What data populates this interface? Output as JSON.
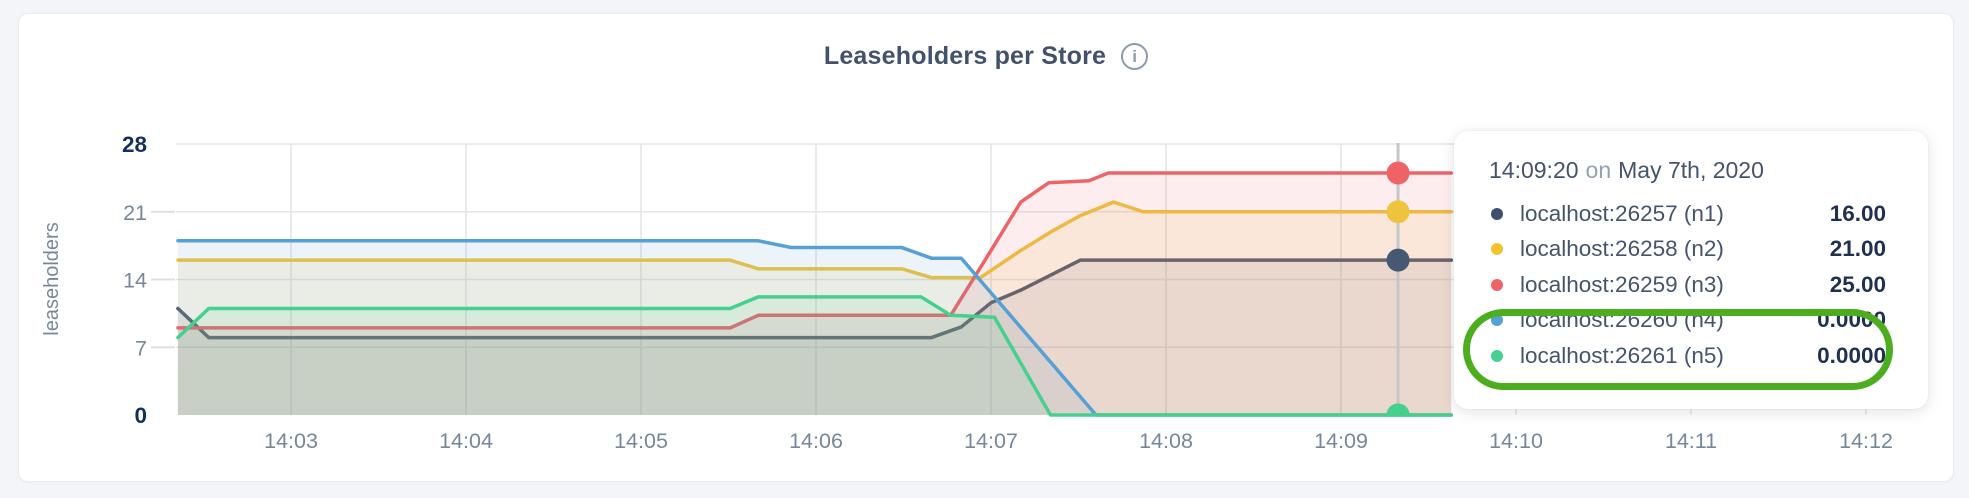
{
  "header": {
    "title": "Leaseholders per Store",
    "info_icon": "i"
  },
  "chart_data": {
    "type": "area",
    "title": "Leaseholders per Store",
    "ylabel": "leaseholders",
    "ylim": [
      0,
      28
    ],
    "grid": true,
    "x_axis_unit": "time (hh:mm)",
    "x_ticks": [
      {
        "m": 3,
        "label": "14:03"
      },
      {
        "m": 4,
        "label": "14:04"
      },
      {
        "m": 5,
        "label": "14:05"
      },
      {
        "m": 6,
        "label": "14:06"
      },
      {
        "m": 7,
        "label": "14:07"
      },
      {
        "m": 8,
        "label": "14:08"
      },
      {
        "m": 9,
        "label": "14:09"
      },
      {
        "m": 10,
        "label": "14:10"
      },
      {
        "m": 11,
        "label": "14:11"
      },
      {
        "m": 12,
        "label": "14:12"
      }
    ],
    "y_ticks": [
      {
        "v": 0,
        "label": "0",
        "bold": true
      },
      {
        "v": 7,
        "label": "7",
        "bold": false
      },
      {
        "v": 14,
        "label": "14",
        "bold": false
      },
      {
        "v": 21,
        "label": "21",
        "bold": false
      },
      {
        "v": 28,
        "label": "28",
        "bold": true
      }
    ],
    "series": [
      {
        "name": "localhost:26257 (n1)",
        "color": "#475872",
        "points": [
          [
            2.354,
            11
          ],
          [
            2.53,
            8
          ],
          [
            6.66,
            8
          ],
          [
            6.83,
            9.1
          ],
          [
            7.0,
            11.6
          ],
          [
            7.17,
            12.9
          ],
          [
            7.51,
            16
          ],
          [
            9.63,
            16
          ]
        ]
      },
      {
        "name": "localhost:26258 (n2)",
        "color": "#eec43e",
        "points": [
          [
            2.354,
            16
          ],
          [
            5.51,
            16
          ],
          [
            5.67,
            15.1
          ],
          [
            6.49,
            15.1
          ],
          [
            6.66,
            14.2
          ],
          [
            6.94,
            14.2
          ],
          [
            7.17,
            17
          ],
          [
            7.34,
            18.9
          ],
          [
            7.51,
            20.6
          ],
          [
            7.7,
            22
          ],
          [
            7.87,
            21
          ],
          [
            9.63,
            21
          ]
        ]
      },
      {
        "name": "localhost:26259 (n3)",
        "color": "#ee6466",
        "points": [
          [
            2.354,
            9
          ],
          [
            5.51,
            9
          ],
          [
            5.67,
            10.3
          ],
          [
            6.77,
            10.3
          ],
          [
            7.0,
            17
          ],
          [
            7.17,
            22
          ],
          [
            7.33,
            24
          ],
          [
            7.56,
            24.2
          ],
          [
            7.67,
            25
          ],
          [
            9.63,
            25
          ]
        ]
      },
      {
        "name": "localhost:26260 (n4)",
        "color": "#55a0d5",
        "points": [
          [
            2.354,
            18
          ],
          [
            5.67,
            18
          ],
          [
            5.86,
            17.3
          ],
          [
            6.49,
            17.3
          ],
          [
            6.66,
            16.2
          ],
          [
            6.83,
            16.2
          ],
          [
            7.6,
            0
          ],
          [
            9.63,
            0
          ]
        ]
      },
      {
        "name": "localhost:26261 (n5)",
        "color": "#45d08e",
        "points": [
          [
            2.354,
            8
          ],
          [
            2.53,
            11
          ],
          [
            5.51,
            11
          ],
          [
            5.67,
            12.2
          ],
          [
            6.6,
            12.2
          ],
          [
            6.77,
            10.3
          ],
          [
            7.02,
            10.1
          ],
          [
            7.34,
            0
          ],
          [
            9.63,
            0
          ]
        ]
      }
    ],
    "hover": {
      "m": 9.326,
      "time_label": "14:09:20",
      "dots": [
        {
          "s": 3,
          "v": 0,
          "clip": true
        },
        {
          "s": 4,
          "v": 0,
          "clip": true
        },
        {
          "s": 0,
          "v": 16,
          "clip": false
        },
        {
          "s": 1,
          "v": 21,
          "clip": false
        },
        {
          "s": 2,
          "v": 25,
          "clip": false
        }
      ]
    }
  },
  "tooltip": {
    "time": "14:09:20",
    "conj": "on",
    "date": "May 7th, 2020",
    "rows": [
      {
        "label": "localhost:26257 (n1)",
        "value": "16.00",
        "color": "#3f4f6d"
      },
      {
        "label": "localhost:26258 (n2)",
        "value": "21.00",
        "color": "#f5c12e"
      },
      {
        "label": "localhost:26259 (n3)",
        "value": "25.00",
        "color": "#ee6466"
      },
      {
        "label": "localhost:26260 (n4)",
        "value": "0.0000",
        "color": "#55a0d5"
      },
      {
        "label": "localhost:26261 (n5)",
        "value": "0.0000",
        "color": "#45d08e"
      }
    ],
    "annotation_color": "#4cae1f"
  }
}
